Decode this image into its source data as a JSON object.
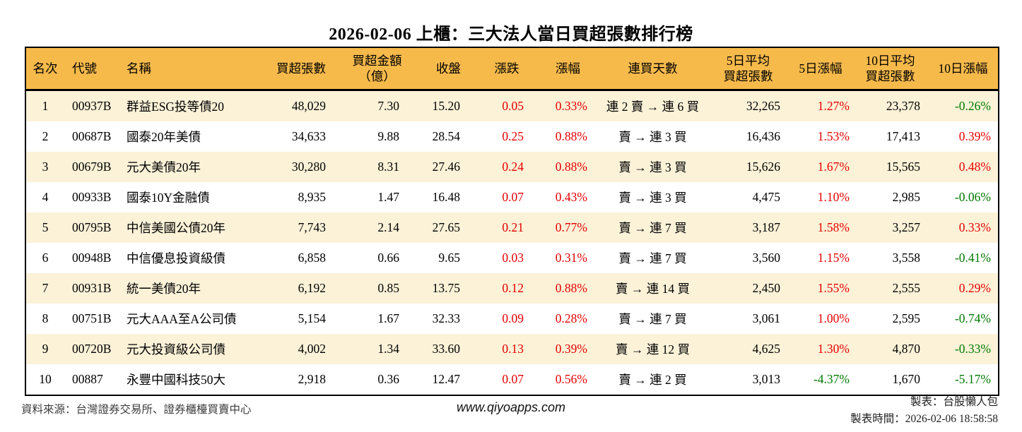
{
  "title": "2026-02-06 上櫃：三大法人當日買超張數排行榜",
  "colors": {
    "up": "#e60000",
    "down": "#007a00",
    "header_bg": "#f6ba4b",
    "row_alt_bg": "#fbf2d8",
    "border": "#000000"
  },
  "table": {
    "columns": [
      {
        "label": "名次"
      },
      {
        "label": "代號"
      },
      {
        "label": "名稱"
      },
      {
        "label": "買超張數"
      },
      {
        "label": "買超金額\n（億）"
      },
      {
        "label": "收盤"
      },
      {
        "label": "漲跌"
      },
      {
        "label": "漲幅"
      },
      {
        "label": "連買天數"
      },
      {
        "label": "5日平均\n買超張數"
      },
      {
        "label": "5日漲幅"
      },
      {
        "label": "10日平均\n買超張數"
      },
      {
        "label": "10日漲幅"
      }
    ],
    "rows": [
      {
        "rank": "1",
        "code": "00937B",
        "name": "群益ESG投等債20",
        "vol": "48,029",
        "amt": "7.30",
        "close": "15.20",
        "chg": "0.05",
        "chgp": "0.33%",
        "chg_dir": "up",
        "streak": "連 2 賣 → 連 6 買",
        "avg5": "32,265",
        "pct5": "1.27%",
        "pct5_dir": "up",
        "avg10": "23,378",
        "pct10": "-0.26%",
        "pct10_dir": "down"
      },
      {
        "rank": "2",
        "code": "00687B",
        "name": "國泰20年美債",
        "vol": "34,633",
        "amt": "9.88",
        "close": "28.54",
        "chg": "0.25",
        "chgp": "0.88%",
        "chg_dir": "up",
        "streak": "賣 → 連 3 買",
        "avg5": "16,436",
        "pct5": "1.53%",
        "pct5_dir": "up",
        "avg10": "17,413",
        "pct10": "0.39%",
        "pct10_dir": "up"
      },
      {
        "rank": "3",
        "code": "00679B",
        "name": "元大美債20年",
        "vol": "30,280",
        "amt": "8.31",
        "close": "27.46",
        "chg": "0.24",
        "chgp": "0.88%",
        "chg_dir": "up",
        "streak": "賣 → 連 3 買",
        "avg5": "15,626",
        "pct5": "1.67%",
        "pct5_dir": "up",
        "avg10": "15,565",
        "pct10": "0.48%",
        "pct10_dir": "up"
      },
      {
        "rank": "4",
        "code": "00933B",
        "name": "國泰10Y金融債",
        "vol": "8,935",
        "amt": "1.47",
        "close": "16.48",
        "chg": "0.07",
        "chgp": "0.43%",
        "chg_dir": "up",
        "streak": "賣 → 連 3 買",
        "avg5": "4,475",
        "pct5": "1.10%",
        "pct5_dir": "up",
        "avg10": "2,985",
        "pct10": "-0.06%",
        "pct10_dir": "down"
      },
      {
        "rank": "5",
        "code": "00795B",
        "name": "中信美國公債20年",
        "vol": "7,743",
        "amt": "2.14",
        "close": "27.65",
        "chg": "0.21",
        "chgp": "0.77%",
        "chg_dir": "up",
        "streak": "賣 → 連 7 買",
        "avg5": "3,187",
        "pct5": "1.58%",
        "pct5_dir": "up",
        "avg10": "3,257",
        "pct10": "0.33%",
        "pct10_dir": "up"
      },
      {
        "rank": "6",
        "code": "00948B",
        "name": "中信優息投資級債",
        "vol": "6,858",
        "amt": "0.66",
        "close": "9.65",
        "chg": "0.03",
        "chgp": "0.31%",
        "chg_dir": "up",
        "streak": "賣 → 連 7 買",
        "avg5": "3,560",
        "pct5": "1.15%",
        "pct5_dir": "up",
        "avg10": "3,558",
        "pct10": "-0.41%",
        "pct10_dir": "down"
      },
      {
        "rank": "7",
        "code": "00931B",
        "name": "統一美債20年",
        "vol": "6,192",
        "amt": "0.85",
        "close": "13.75",
        "chg": "0.12",
        "chgp": "0.88%",
        "chg_dir": "up",
        "streak": "賣 → 連 14 買",
        "avg5": "2,450",
        "pct5": "1.55%",
        "pct5_dir": "up",
        "avg10": "2,555",
        "pct10": "0.29%",
        "pct10_dir": "up"
      },
      {
        "rank": "8",
        "code": "00751B",
        "name": "元大AAA至A公司債",
        "vol": "5,154",
        "amt": "1.67",
        "close": "32.33",
        "chg": "0.09",
        "chgp": "0.28%",
        "chg_dir": "up",
        "streak": "賣 → 連 7 買",
        "avg5": "3,061",
        "pct5": "1.00%",
        "pct5_dir": "up",
        "avg10": "2,595",
        "pct10": "-0.74%",
        "pct10_dir": "down"
      },
      {
        "rank": "9",
        "code": "00720B",
        "name": "元大投資級公司債",
        "vol": "4,002",
        "amt": "1.34",
        "close": "33.60",
        "chg": "0.13",
        "chgp": "0.39%",
        "chg_dir": "up",
        "streak": "賣 → 連 12 買",
        "avg5": "4,625",
        "pct5": "1.30%",
        "pct5_dir": "up",
        "avg10": "4,870",
        "pct10": "-0.33%",
        "pct10_dir": "down"
      },
      {
        "rank": "10",
        "code": "00887",
        "name": "永豐中國科技50大",
        "vol": "2,918",
        "amt": "0.36",
        "close": "12.47",
        "chg": "0.07",
        "chgp": "0.56%",
        "chg_dir": "up",
        "streak": "賣 → 連 2 買",
        "avg5": "3,013",
        "pct5": "-4.37%",
        "pct5_dir": "down",
        "avg10": "1,670",
        "pct10": "-5.17%",
        "pct10_dir": "down"
      }
    ]
  },
  "footer": {
    "source": "資料來源：台灣證券交易所、證券櫃檯買賣中心",
    "site": "www.qiyoapps.com",
    "maker": "製表：台股懶人包",
    "generated": "製表時間：2026-02-06 18:58:58"
  }
}
